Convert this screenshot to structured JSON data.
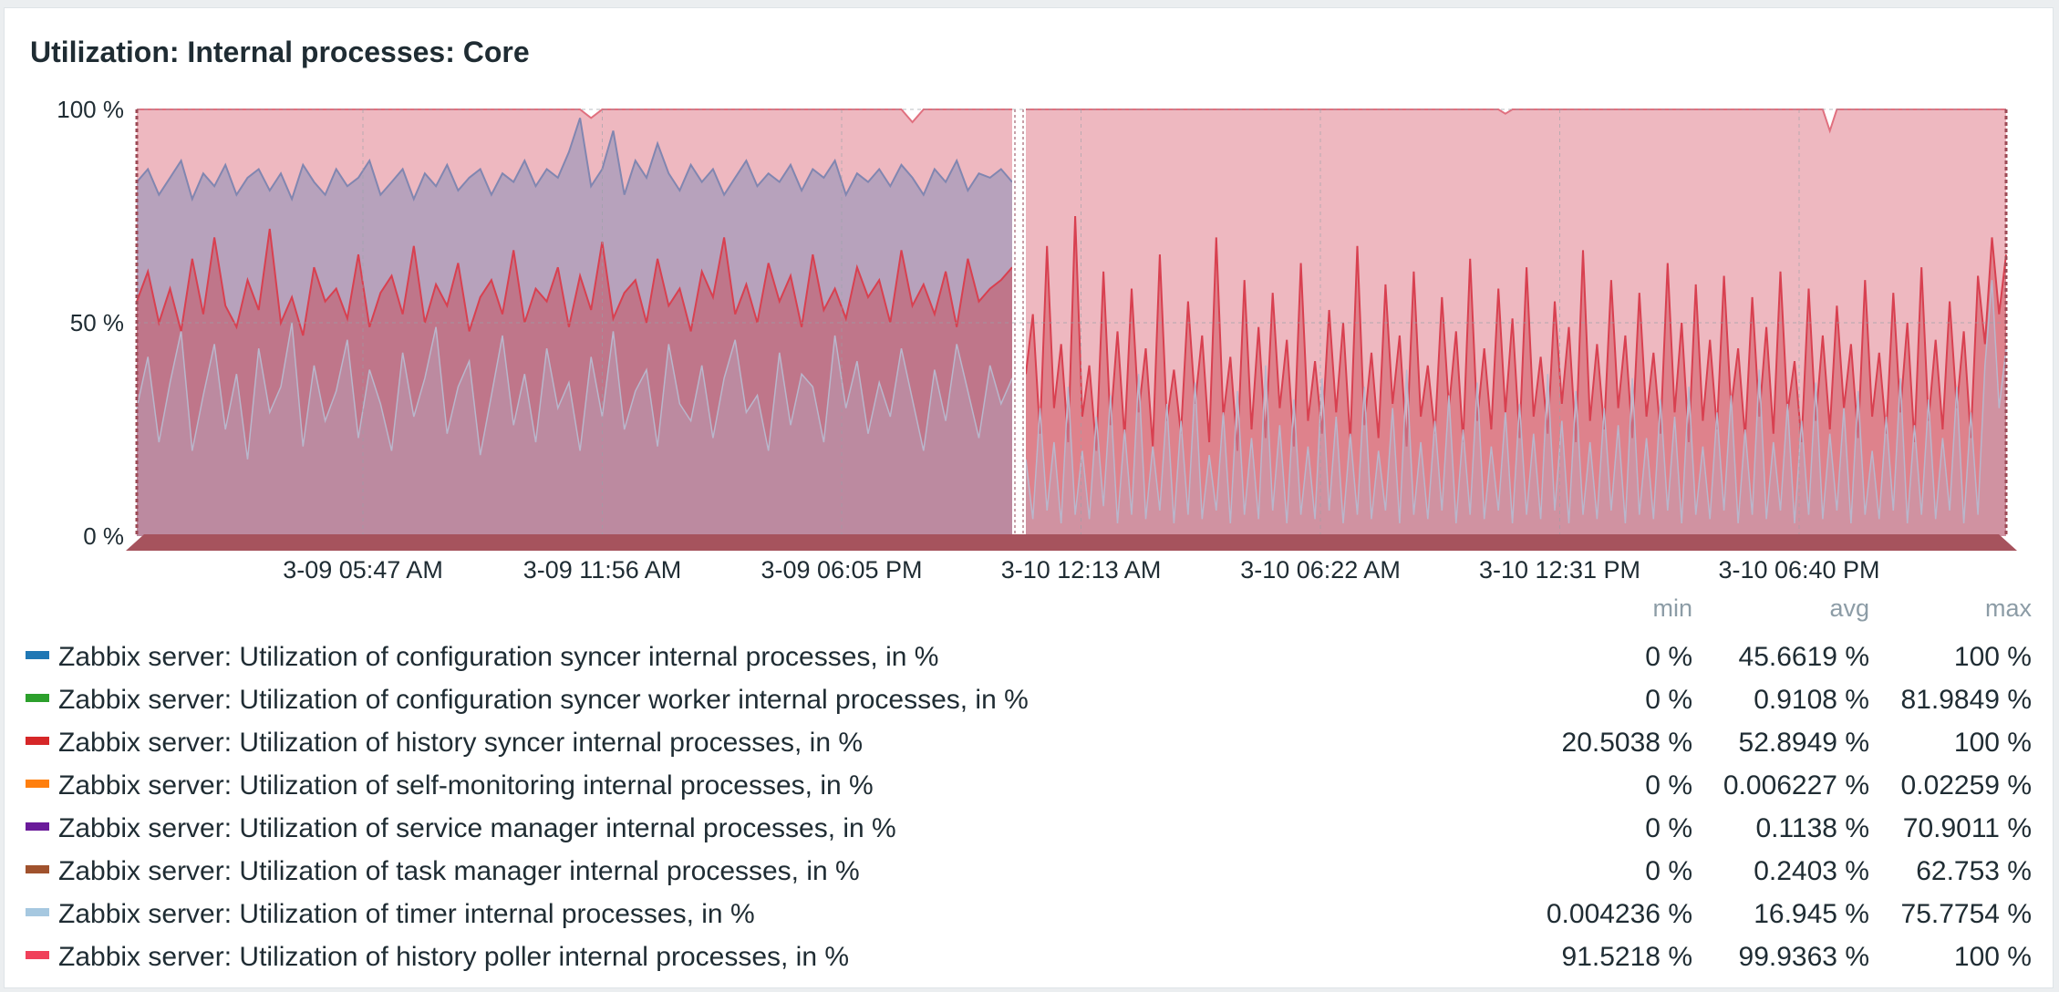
{
  "widget": {
    "title": "Utilization: Internal processes: Core"
  },
  "legend": {
    "headers": {
      "min": "min",
      "avg": "avg",
      "max": "max"
    },
    "items": [
      {
        "name": "Zabbix server: Utilization of configuration syncer internal processes, in %",
        "color": "#1f77b4",
        "min": "0 %",
        "avg": "45.6619 %",
        "max": "100 %"
      },
      {
        "name": "Zabbix server: Utilization of configuration syncer worker internal processes, in %",
        "color": "#2ca02c",
        "min": "0 %",
        "avg": "0.9108 %",
        "max": "81.9849 %"
      },
      {
        "name": "Zabbix server: Utilization of history syncer internal processes, in %",
        "color": "#d62728",
        "min": "20.5038 %",
        "avg": "52.8949 %",
        "max": "100 %"
      },
      {
        "name": "Zabbix server: Utilization of self-monitoring internal processes, in %",
        "color": "#ff7f0e",
        "min": "0 %",
        "avg": "0.006227 %",
        "max": "0.02259 %"
      },
      {
        "name": "Zabbix server: Utilization of service manager internal processes, in %",
        "color": "#6a1b9a",
        "min": "0 %",
        "avg": "0.1138 %",
        "max": "70.9011 %"
      },
      {
        "name": "Zabbix server: Utilization of task manager internal processes, in %",
        "color": "#a0522d",
        "min": "0 %",
        "avg": "0.2403 %",
        "max": "62.753 %"
      },
      {
        "name": "Zabbix server: Utilization of timer internal processes, in %",
        "color": "#a6c8e0",
        "min": "0.004236 %",
        "avg": "16.945 %",
        "max": "75.7754 %"
      },
      {
        "name": "Zabbix server: Utilization of history poller internal processes, in %",
        "color": "#f0405a",
        "min": "91.5218 %",
        "avg": "99.9363 %",
        "max": "100 %"
      }
    ]
  },
  "chart_data": {
    "type": "area",
    "title": "Utilization: Internal processes: Core",
    "ylim": [
      0,
      100
    ],
    "y_ticks": [
      "0 %",
      "50 %",
      "100 %"
    ],
    "x_ticks": [
      "3-09 05:47 AM",
      "3-09 11:56 AM",
      "3-09 06:05 PM",
      "3-10 12:13 AM",
      "3-10 06:22 AM",
      "3-10 12:31 PM",
      "3-10 06:40 PM"
    ],
    "grid": true,
    "series": [
      {
        "name": "Zabbix server: Utilization of history poller internal processes, in %",
        "color": "#f0405a",
        "before": [
          100,
          100,
          100,
          100,
          100,
          100,
          100,
          100,
          100,
          100,
          100,
          100,
          100,
          100,
          100,
          100,
          100,
          100,
          100,
          100,
          100,
          100,
          100,
          100,
          100,
          100,
          100,
          100,
          100,
          100,
          100,
          100,
          100,
          100,
          100,
          100,
          100,
          100,
          100,
          100,
          100,
          98,
          100,
          100,
          100,
          100,
          100,
          100,
          100,
          100,
          100,
          100,
          100,
          100,
          100,
          100,
          100,
          100,
          100,
          100,
          100,
          100,
          100,
          100,
          100,
          100,
          100,
          100,
          100,
          100,
          97,
          100,
          100,
          100,
          100,
          100,
          100,
          100,
          100,
          100
        ],
        "after": [
          100,
          100,
          100,
          100,
          100,
          100,
          100,
          100,
          100,
          100,
          100,
          100,
          100,
          100,
          100,
          100,
          100,
          100,
          100,
          100,
          100,
          100,
          100,
          100,
          100,
          100,
          100,
          100,
          100,
          100,
          100,
          100,
          100,
          100,
          100,
          100,
          100,
          100,
          100,
          100,
          100,
          100,
          100,
          100,
          100,
          100,
          100,
          100,
          100,
          100,
          100,
          100,
          100,
          100,
          100,
          100,
          100,
          100,
          100,
          100,
          100,
          100,
          100,
          100,
          100,
          100,
          100,
          100,
          99,
          100,
          100,
          100,
          100,
          100,
          100,
          100,
          100,
          100,
          100,
          100,
          100,
          100,
          100,
          100,
          100,
          100,
          100,
          100,
          100,
          100,
          100,
          100,
          100,
          100,
          100,
          100,
          100,
          100,
          100,
          100,
          100,
          100,
          100,
          100,
          100,
          100,
          100,
          100,
          100,
          100,
          100,
          100,
          100,
          100,
          95,
          100,
          100,
          100,
          100,
          100,
          100,
          100,
          100,
          100,
          100,
          100,
          100,
          100,
          100,
          100,
          100,
          100,
          100,
          100,
          100,
          100,
          100,
          100,
          100,
          100
        ]
      },
      {
        "name": "Zabbix server: Utilization of configuration syncer internal processes, in %",
        "color": "#1f77b4",
        "before": [
          83,
          86,
          80,
          84,
          88,
          79,
          85,
          82,
          87,
          80,
          84,
          86,
          81,
          85,
          79,
          87,
          83,
          80,
          86,
          82,
          84,
          88,
          80,
          83,
          86,
          79,
          85,
          82,
          87,
          81,
          84,
          86,
          80,
          85,
          83,
          88,
          82,
          86,
          84,
          90,
          98,
          82,
          86,
          95,
          80,
          88,
          84,
          92,
          85,
          81,
          87,
          83,
          86,
          80,
          84,
          88,
          82,
          85,
          83,
          87,
          81,
          86,
          84,
          88,
          80,
          85,
          83,
          86,
          82,
          87,
          84,
          80,
          86,
          83,
          88,
          81,
          85,
          84,
          86,
          83
        ],
        "after": []
      },
      {
        "name": "Zabbix server: Utilization of history syncer internal processes, in %",
        "color": "#d62728",
        "before": [
          55,
          62,
          50,
          58,
          48,
          65,
          52,
          70,
          54,
          49,
          60,
          53,
          72,
          50,
          56,
          47,
          63,
          55,
          58,
          51,
          66,
          49,
          57,
          61,
          52,
          68,
          50,
          59,
          54,
          64,
          48,
          56,
          60,
          52,
          67,
          50,
          58,
          55,
          63,
          49,
          61,
          53,
          69,
          51,
          57,
          60,
          50,
          65,
          54,
          58,
          48,
          62,
          56,
          70,
          52,
          59,
          50,
          64,
          55,
          61,
          49,
          66,
          53,
          58,
          51,
          63,
          56,
          60,
          50,
          67,
          54,
          59,
          52,
          62,
          49,
          65,
          55,
          58,
          60,
          63
        ],
        "after": [
          38,
          52,
          24,
          68,
          30,
          45,
          22,
          75,
          28,
          40,
          20,
          62,
          26,
          48,
          23,
          58,
          29,
          44,
          21,
          66,
          27,
          39,
          24,
          55,
          31,
          47,
          22,
          70,
          28,
          42,
          20,
          60,
          25,
          49,
          23,
          57,
          30,
          46,
          21,
          64,
          27,
          41,
          24,
          53,
          29,
          50,
          22,
          68,
          26,
          43,
          23,
          59,
          31,
          47,
          21,
          62,
          28,
          40,
          24,
          56,
          30,
          48,
          22,
          65,
          27,
          44,
          25,
          58,
          29,
          51,
          23,
          63,
          28,
          42,
          24,
          55,
          31,
          49,
          22,
          67,
          27,
          45,
          25,
          60,
          30,
          47,
          23,
          57,
          28,
          43,
          24,
          64,
          29,
          50,
          22,
          59,
          27,
          46,
          25,
          61,
          30,
          44,
          23,
          56,
          28,
          49,
          24,
          62,
          29,
          41,
          22,
          58,
          27,
          47,
          25,
          54,
          30,
          45,
          23,
          60,
          28,
          43,
          24,
          57,
          29,
          50,
          22,
          63,
          27,
          46,
          25,
          55,
          30,
          48,
          23,
          61,
          45,
          70,
          52,
          66
        ]
      },
      {
        "name": "Zabbix server: Utilization of timer internal processes, in %",
        "color": "#a6c8e0",
        "before": [
          30,
          42,
          22,
          36,
          48,
          20,
          33,
          45,
          25,
          38,
          18,
          44,
          29,
          35,
          50,
          21,
          40,
          27,
          34,
          46,
          23,
          39,
          31,
          20,
          43,
          28,
          37,
          49,
          24,
          35,
          41,
          19,
          33,
          47,
          26,
          38,
          22,
          44,
          30,
          36,
          20,
          42,
          28,
          48,
          25,
          34,
          39,
          21,
          45,
          31,
          27,
          40,
          23,
          37,
          46,
          29,
          33,
          20,
          43,
          26,
          38,
          35,
          22,
          47,
          30,
          41,
          24,
          36,
          28,
          44,
          32,
          20,
          39,
          27,
          45,
          34,
          23,
          40,
          31,
          37
        ],
        "after": [
          18,
          4,
          30,
          6,
          22,
          3,
          35,
          5,
          20,
          4,
          28,
          7,
          33,
          3,
          25,
          5,
          38,
          4,
          21,
          6,
          31,
          3,
          27,
          5,
          36,
          4,
          19,
          6,
          29,
          3,
          34,
          5,
          23,
          4,
          40,
          6,
          26,
          3,
          32,
          5,
          21,
          4,
          37,
          6,
          28,
          3,
          24,
          5,
          35,
          4,
          20,
          6,
          30,
          3,
          39,
          5,
          22,
          4,
          27,
          6,
          33,
          3,
          25,
          5,
          36,
          4,
          21,
          6,
          29,
          3,
          31,
          5,
          24,
          4,
          38,
          6,
          27,
          3,
          34,
          5,
          22,
          4,
          30,
          6,
          26,
          3,
          37,
          5,
          23,
          4,
          32,
          6,
          28,
          3,
          35,
          5,
          21,
          4,
          29,
          6,
          33,
          3,
          25,
          5,
          39,
          4,
          22,
          6,
          31,
          3,
          27,
          5,
          36,
          4,
          24,
          6,
          30,
          3,
          34,
          5,
          20,
          4,
          28,
          6,
          37,
          3,
          26,
          5,
          32,
          4,
          23,
          6,
          35,
          3,
          29,
          5,
          40,
          60,
          30,
          44
        ]
      }
    ]
  }
}
